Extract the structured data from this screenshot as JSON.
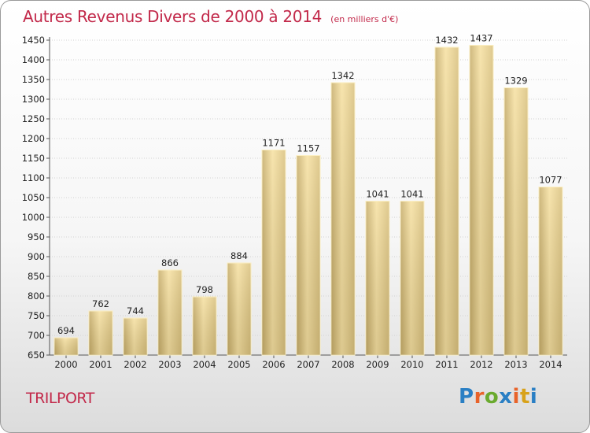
{
  "header": {
    "title": "Autres Revenus Divers de 2000 à 2014",
    "subtitle": "(en milliers d'€)"
  },
  "footer": {
    "town": "TRILPORT",
    "logo_text": "Proxiti"
  },
  "colors": {
    "title": "#c2294a",
    "bar_light": "#f6e0a0",
    "bar_dark": "#c6ac68"
  },
  "chart_data": {
    "type": "bar",
    "title": "Autres Revenus Divers de 2000 à 2014",
    "subtitle": "(en milliers d'€)",
    "categories": [
      "2000",
      "2001",
      "2002",
      "2003",
      "2004",
      "2005",
      "2006",
      "2007",
      "2008",
      "2009",
      "2010",
      "2011",
      "2012",
      "2013",
      "2014"
    ],
    "values": [
      694,
      762,
      744,
      866,
      798,
      884,
      1171,
      1157,
      1342,
      1041,
      1041,
      1432,
      1437,
      1329,
      1077
    ],
    "ylim": [
      650,
      1450
    ],
    "yticks": [
      650,
      700,
      750,
      800,
      850,
      900,
      950,
      1000,
      1050,
      1100,
      1150,
      1200,
      1250,
      1300,
      1350,
      1400,
      1450
    ],
    "grid": true,
    "legend": "none"
  }
}
